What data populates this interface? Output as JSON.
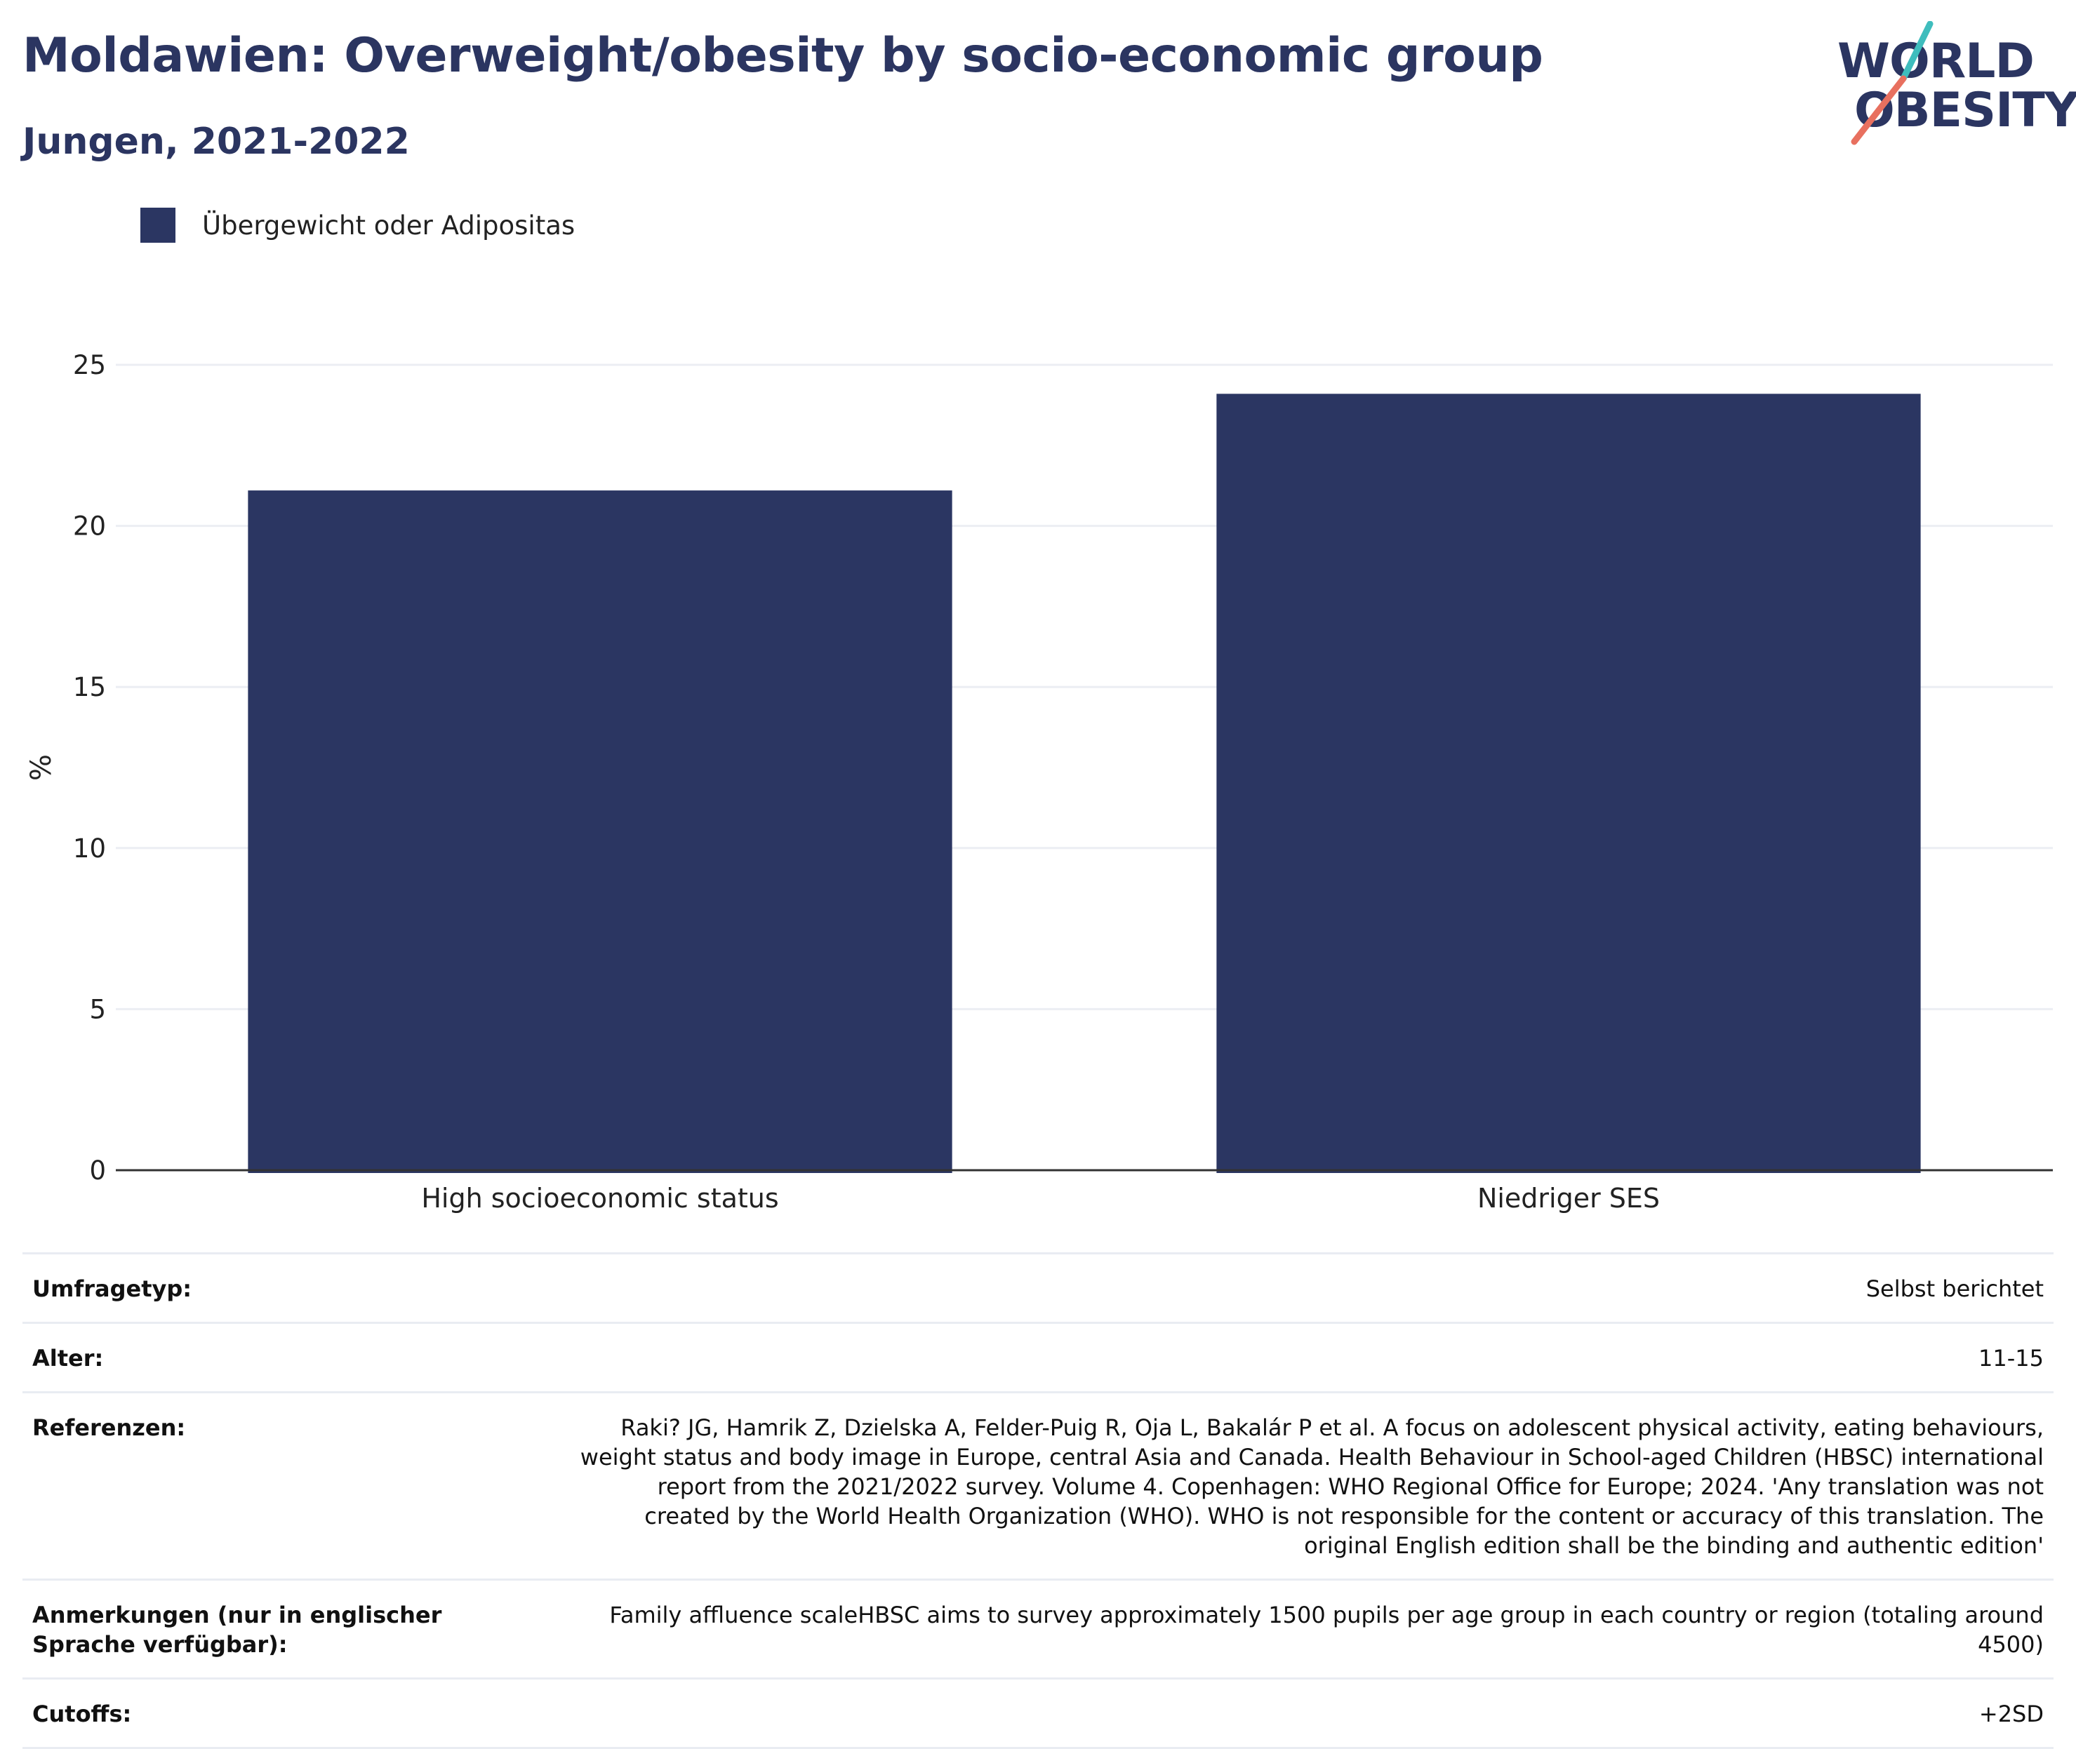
{
  "title": "Moldawien: Overweight/obesity by socio-economic group",
  "subtitle": "Jungen, 2021-2022",
  "logo": {
    "line1": "WORLD",
    "line2": "OBESITY",
    "accent_teal": "#3fbdbd",
    "accent_coral": "#e8705f"
  },
  "legend": {
    "label": "Übergewicht oder Adipositas"
  },
  "colors": {
    "bar": "#2b3662",
    "title": "#2b3561",
    "grid": "#eceef3",
    "axis": "#333333"
  },
  "chart_data": {
    "type": "bar",
    "categories": [
      "High socioeconomic status",
      "Niedriger SES"
    ],
    "series": [
      {
        "name": "Übergewicht oder Adipositas",
        "values": [
          21.1,
          24.1
        ]
      }
    ],
    "xlabel": "",
    "ylabel": "%",
    "ylim": [
      0,
      25
    ],
    "yticks": [
      0,
      5,
      10,
      15,
      20,
      25
    ],
    "grid": true,
    "legend_position": "top-left"
  },
  "info": {
    "survey_type": {
      "label": "Umfragetyp:",
      "value": "Selbst berichtet"
    },
    "age": {
      "label": "Alter:",
      "value": "11-15"
    },
    "references": {
      "label": "Referenzen:",
      "value": "Raki? JG, Hamrik Z, Dzielska A, Felder-Puig R, Oja L, Bakalár P et al. A focus on adolescent physical activity, eating behaviours, weight status and body image in Europe, central Asia and Canada. Health Behaviour in School-aged Children (HBSC) international report from the 2021/2022 survey. Volume 4. Copenhagen: WHO Regional Office for Europe; 2024. 'Any translation was not created by the World Health Organization (WHO). WHO is not responsible for the content or accuracy of this translation. The original English edition shall be the binding and authentic edition'"
    },
    "notes": {
      "label": "Anmerkungen (nur in englischer Sprache verfügbar):",
      "value": "Family affluence scaleHBSC aims to survey approximately 1500 pupils per age group in each country or region (totaling around 4500)"
    },
    "cutoffs": {
      "label": "Cutoffs:",
      "value": "+2SD"
    }
  }
}
